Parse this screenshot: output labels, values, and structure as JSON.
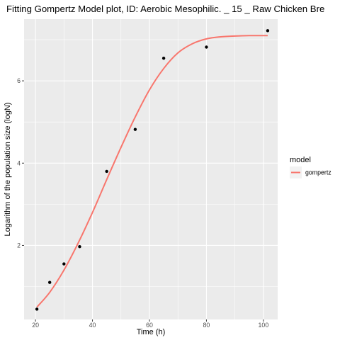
{
  "chart_data": {
    "type": "line",
    "title": "Fitting Gompertz Model plot, ID: Aerobic Mesophilic. _ 15 _ Raw Chicken Bre",
    "xlabel": "Time (h)",
    "ylabel": "Logarithm of the population size (logN)",
    "xlim": [
      16,
      105
    ],
    "ylim": [
      0.2,
      7.5
    ],
    "x_ticks": [
      20,
      40,
      60,
      80,
      100
    ],
    "x_tick_labels": [
      "20",
      "40",
      "60",
      "80",
      "100"
    ],
    "y_ticks": [
      2,
      4,
      6
    ],
    "y_tick_labels": [
      "2",
      "4",
      "6"
    ],
    "grid": true,
    "legend_position": "right",
    "legend": {
      "title": "model",
      "entries": [
        {
          "label": "gompertz",
          "color": "#F8766D"
        }
      ]
    },
    "points": {
      "x": [
        20.5,
        25,
        30,
        35.5,
        45,
        55,
        65,
        80,
        101.5
      ],
      "y": [
        0.45,
        1.1,
        1.55,
        1.97,
        3.8,
        4.82,
        6.55,
        6.82,
        7.22
      ],
      "color": "#000000"
    },
    "series": [
      {
        "name": "gompertz",
        "color": "#F8766D",
        "x": [
          20.5,
          25,
          30,
          35,
          40,
          45,
          50,
          55,
          60,
          65,
          70,
          75,
          80,
          85,
          90,
          95,
          101.5
        ],
        "y": [
          0.5,
          0.86,
          1.4,
          2.06,
          2.8,
          3.6,
          4.38,
          5.12,
          5.78,
          6.3,
          6.68,
          6.9,
          7.02,
          7.07,
          7.09,
          7.1,
          7.1
        ]
      }
    ]
  }
}
